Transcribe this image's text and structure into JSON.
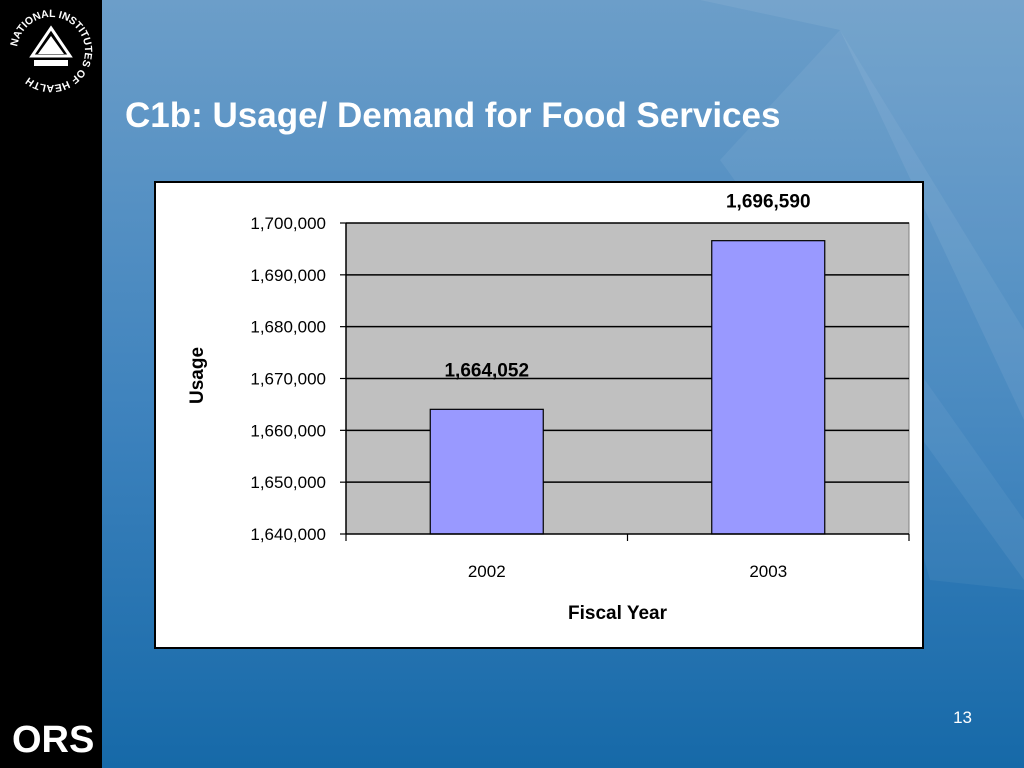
{
  "slide": {
    "title": "C1b:  Usage/ Demand for Food Services",
    "page_number": "13",
    "colors": {
      "sidebar": "#000000",
      "background_top": "#6c9ec9",
      "background_bottom": "#1669a8",
      "title_text": "#ffffff",
      "bar_fill": "#9999ff",
      "plot_bg": "#c0c0c0"
    },
    "logos": {
      "nih": "NATIONAL INSTITUTES OF HEALTH",
      "ors": "ORS"
    }
  },
  "chart_data": {
    "type": "bar",
    "categories": [
      "2002",
      "2003"
    ],
    "values": [
      1664052,
      1696590
    ],
    "data_labels": [
      "1,664,052",
      "1,696,590"
    ],
    "xlabel": "Fiscal Year",
    "ylabel": "Usage",
    "ylim": [
      1640000,
      1700000
    ],
    "yticks": [
      1640000,
      1650000,
      1660000,
      1670000,
      1680000,
      1690000,
      1700000
    ],
    "ytick_labels": [
      "1,640,000",
      "1,650,000",
      "1,660,000",
      "1,670,000",
      "1,680,000",
      "1,690,000",
      "1,700,000"
    ],
    "grid": true,
    "legend": "none"
  }
}
